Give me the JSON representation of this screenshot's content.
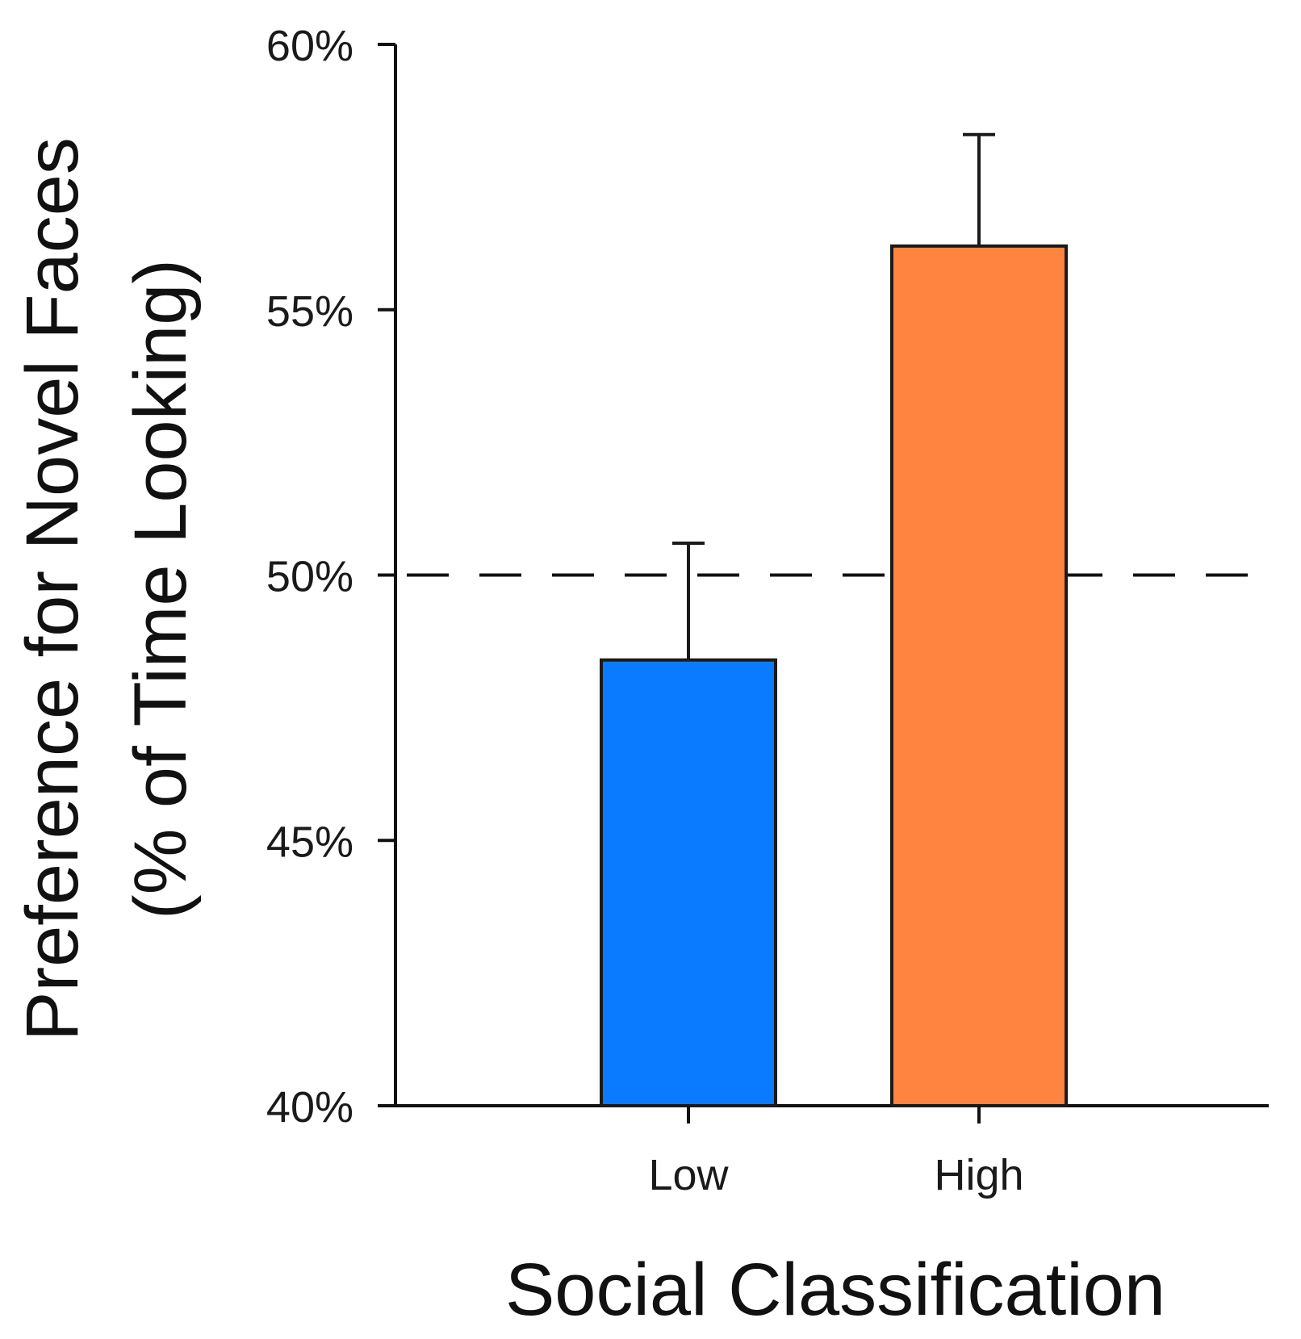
{
  "chart_data": {
    "type": "bar",
    "title": "",
    "xlabel": "Social Classification",
    "ylabel_lines": [
      "Preference for Novel Faces",
      "(% of Time Looking)"
    ],
    "categories": [
      "Low",
      "High"
    ],
    "values": [
      48.4,
      56.2
    ],
    "error_upper": [
      50.6,
      58.3
    ],
    "colors": [
      "#0a7bff",
      "#ff8440"
    ],
    "ylim": [
      40,
      60
    ],
    "yticks": [
      40,
      45,
      50,
      55,
      60
    ],
    "ytick_labels": [
      "40%",
      "45%",
      "50%",
      "55%",
      "60%"
    ],
    "reference_line": 50,
    "grid": false,
    "legend": "none"
  }
}
